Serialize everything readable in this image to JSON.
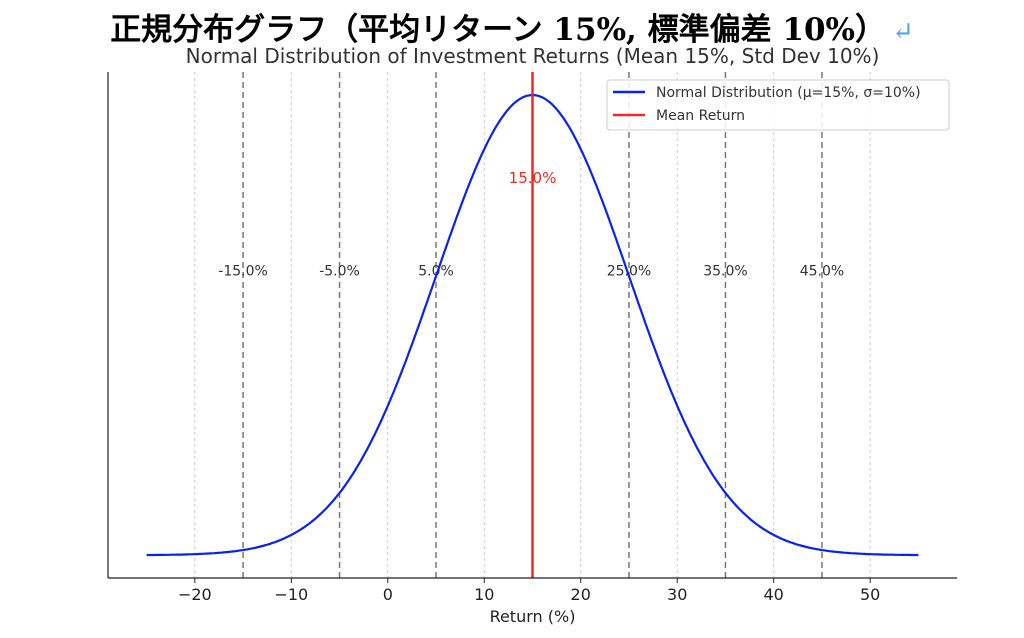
{
  "heading": {
    "text": "正規分布グラフ（平均リターン 15%, 標準偏差 10%）",
    "icon": "return-arrow-icon",
    "icon_glyph": "↵"
  },
  "chart_data": {
    "type": "line",
    "title": "Normal Distribution of Investment Returns (Mean 15%, Std Dev 10%)",
    "xlabel": "Return (%)",
    "ylabel": "",
    "xlim": [
      -29,
      59
    ],
    "ylim": [
      -0.00198,
      0.04189
    ],
    "xticks": [
      -20,
      -10,
      0,
      10,
      20,
      30,
      40,
      50
    ],
    "xtick_labels": [
      "−20",
      "−10",
      "0",
      "10",
      "20",
      "30",
      "40",
      "50"
    ],
    "grid": "x, dotted",
    "mean": 15,
    "std": 10,
    "x_range": [
      -25,
      55
    ],
    "series": [
      {
        "name": "Normal Distribution (μ=15%, σ=10%)",
        "color": "#0a22f0",
        "function": "normal_pdf"
      },
      {
        "name": "Mean Return",
        "color": "#ee2a22",
        "vline": 15
      }
    ],
    "std_lines": [
      {
        "x": -15,
        "label": "-15.0%"
      },
      {
        "x": -5,
        "label": "-5.0%"
      },
      {
        "x": 5,
        "label": "5.0%"
      },
      {
        "x": 25,
        "label": "25.0%"
      },
      {
        "x": 35,
        "label": "35.0%"
      },
      {
        "x": 45,
        "label": "45.0%"
      }
    ],
    "std_label_y": 0.0247,
    "mean_label": {
      "text": "15.0%",
      "y": 0.0327
    },
    "legend": "top-right"
  }
}
